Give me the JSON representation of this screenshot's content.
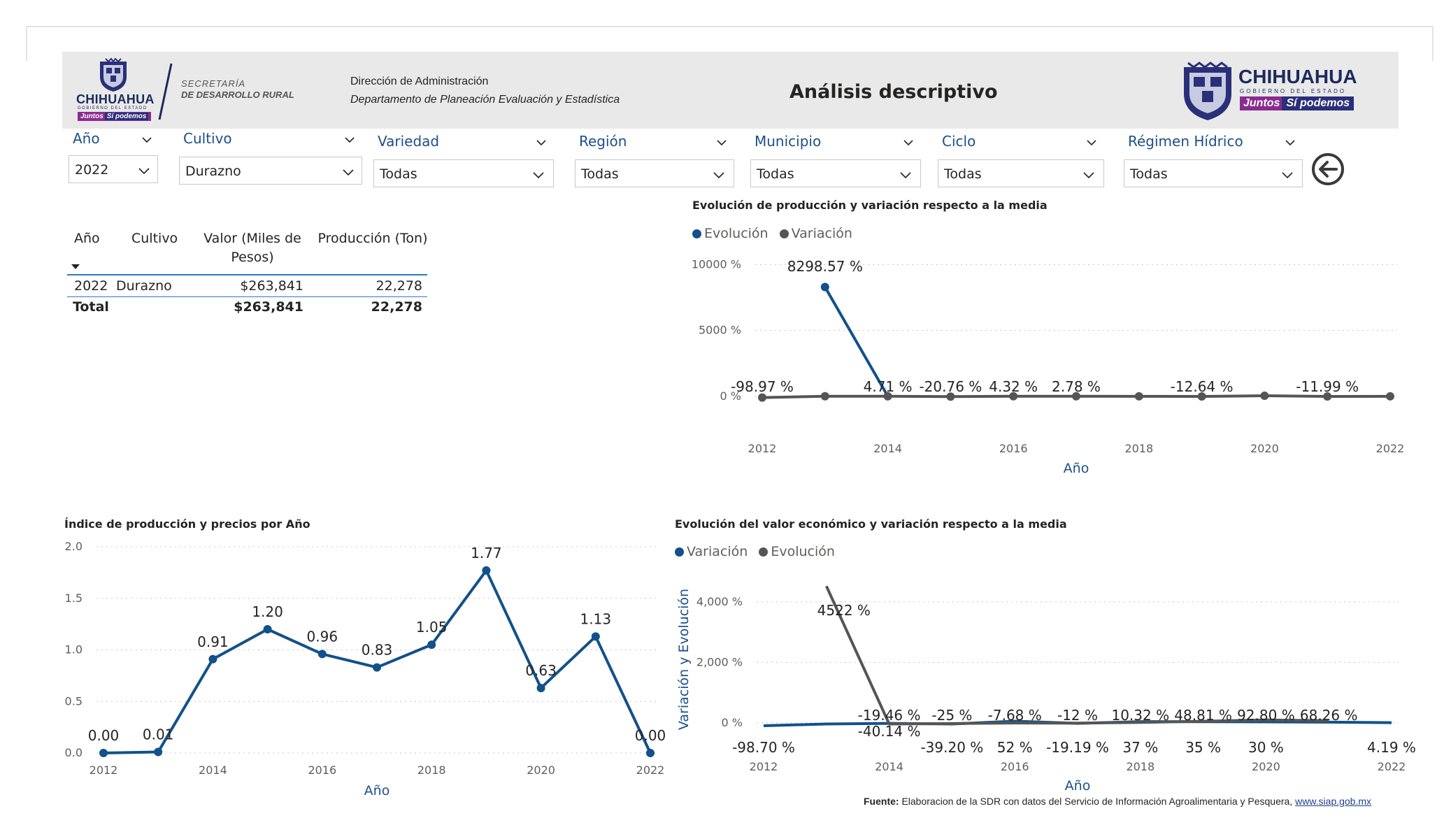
{
  "header": {
    "brand_left": "CHIHUAHUA",
    "brand_left_sub": "GOBIERNO DEL ESTADO",
    "tag_left_a": "Juntos",
    "tag_left_b": "Sí podemos",
    "secretaria_l1": "SECRETARÍA",
    "secretaria_l2": "DE DESARROLLO RURAL",
    "direccion": "Dirección de Administración",
    "departamento": "Departamento de Planeación Evaluación y Estadística",
    "title": "Análisis descriptivo",
    "brand_right": "CHIHUAHUA",
    "brand_right_sub": "GOBIERNO DEL ESTADO",
    "tag_right_a": "Juntos",
    "tag_right_b": "Sí podemos"
  },
  "filters": [
    {
      "label": "Año",
      "value": "2022"
    },
    {
      "label": "Cultivo",
      "value": "Durazno"
    },
    {
      "label": "Variedad",
      "value": "Todas"
    },
    {
      "label": "Región",
      "value": "Todas"
    },
    {
      "label": "Municipio",
      "value": "Todas"
    },
    {
      "label": "Ciclo",
      "value": "Todas"
    },
    {
      "label": "Régimen Hídrico",
      "value": "Todas"
    }
  ],
  "table": {
    "headers": [
      "Año",
      "Cultivo",
      "Valor (Miles de Pesos)",
      "Producción (Ton)"
    ],
    "rows": [
      {
        "anio": "2022",
        "cultivo": "Durazno",
        "valor": "$263,841",
        "produccion": "22,278"
      }
    ],
    "total": {
      "label": "Total",
      "valor": "$263,841",
      "produccion": "22,278"
    }
  },
  "colors": {
    "blue": "#12518a",
    "gray": "#555555",
    "axis_title": "#1d4f8a"
  },
  "chart_data": [
    {
      "type": "line",
      "title": "Evolución de producción y variación respecto a la media",
      "xlabel": "Año",
      "ylabel": "",
      "x": [
        2012,
        2013,
        2014,
        2015,
        2016,
        2017,
        2018,
        2019,
        2020,
        2021,
        2022
      ],
      "x_ticks": [
        "2012",
        "2014",
        "2016",
        "2018",
        "2020",
        "2022"
      ],
      "y_ticks": [
        "0 %",
        "5000 %",
        "10000 %"
      ],
      "ylim": [
        -700,
        10500
      ],
      "legend": "top-left",
      "series": [
        {
          "name": "Evolución",
          "color": "#12518a",
          "values": [
            null,
            8298.57,
            4.71,
            null,
            null,
            null,
            null,
            null,
            null,
            null,
            null
          ]
        },
        {
          "name": "Variación",
          "color": "#555555",
          "values": [
            -98.97,
            4,
            4.71,
            -20.76,
            4.32,
            2.78,
            0,
            -12.64,
            40,
            -11.99,
            0
          ]
        }
      ],
      "data_labels": [
        {
          "x": 2012,
          "text": "-98.97 %"
        },
        {
          "x": 2013,
          "text": "8298.57 %"
        },
        {
          "x": 2014,
          "text": "4.71 %"
        },
        {
          "x": 2015,
          "text": "-20.76 %"
        },
        {
          "x": 2016,
          "text": "4.32 %"
        },
        {
          "x": 2017,
          "text": "2.78 %"
        },
        {
          "x": 2019,
          "text": "-12.64 %"
        },
        {
          "x": 2021,
          "text": "-11.99 %"
        }
      ]
    },
    {
      "type": "line",
      "title": "Índice de producción y precios por Año",
      "xlabel": "Año",
      "ylabel": "",
      "x": [
        2012,
        2013,
        2014,
        2015,
        2016,
        2017,
        2018,
        2019,
        2020,
        2021,
        2022
      ],
      "x_ticks": [
        "2012",
        "2014",
        "2016",
        "2018",
        "2020",
        "2022"
      ],
      "y_ticks": [
        "0.0",
        "0.5",
        "1.0",
        "1.5",
        "2.0"
      ],
      "ylim": [
        0,
        2.0
      ],
      "series": [
        {
          "name": "",
          "color": "#12518a",
          "values": [
            0.0,
            0.01,
            0.91,
            1.2,
            0.96,
            0.83,
            1.05,
            1.77,
            0.63,
            1.13,
            0.0
          ]
        }
      ],
      "data_labels": [
        "0.00",
        "0.01",
        "0.91",
        "1.20",
        "0.96",
        "0.83",
        "1.05",
        "1.77",
        "0.63",
        "1.13",
        "0.00"
      ]
    },
    {
      "type": "line",
      "title": "Evolución del valor económico y variación respecto a la media",
      "xlabel": "Año",
      "ylabel": "Variación y Evolución",
      "x": [
        2012,
        2013,
        2014,
        2015,
        2016,
        2017,
        2018,
        2019,
        2020,
        2021,
        2022
      ],
      "x_ticks": [
        "2012",
        "2014",
        "2016",
        "2018",
        "2020",
        "2022"
      ],
      "y_ticks": [
        "0 %",
        "2,000 %",
        "4,000 %"
      ],
      "ylim": [
        -700,
        4900
      ],
      "legend": "top-left",
      "series": [
        {
          "name": "Variación",
          "color": "#12518a",
          "values": [
            -98.7,
            -40.14,
            -19.46,
            -39.2,
            52,
            -19.19,
            37,
            35,
            30,
            20,
            4.19
          ]
        },
        {
          "name": "Evolución",
          "color": "#555555",
          "values": [
            null,
            4522,
            -40.14,
            -25,
            -7.68,
            -12,
            10.32,
            48.81,
            92.8,
            68.26,
            null
          ]
        }
      ],
      "data_labels": [
        {
          "x": 2012,
          "text": "-98.70 %",
          "pos": "below"
        },
        {
          "x": 2013,
          "text": "4522 %",
          "pos": "right"
        },
        {
          "x": 2014,
          "text": "-19.46 %",
          "pos": "above"
        },
        {
          "x": 2014,
          "text": "-40.14 %",
          "pos": "on"
        },
        {
          "x": 2015,
          "text": "-25 %",
          "pos": "above"
        },
        {
          "x": 2015,
          "text": "-39.20 %",
          "pos": "below"
        },
        {
          "x": 2016,
          "text": "-7.68 %",
          "pos": "above"
        },
        {
          "x": 2016,
          "text": "52 %",
          "pos": "below"
        },
        {
          "x": 2017,
          "text": "-12 %",
          "pos": "above"
        },
        {
          "x": 2017,
          "text": "-19.19 %",
          "pos": "below"
        },
        {
          "x": 2018,
          "text": "10.32 %",
          "pos": "above"
        },
        {
          "x": 2018,
          "text": "37 %",
          "pos": "below"
        },
        {
          "x": 2019,
          "text": "48.81 %",
          "pos": "above"
        },
        {
          "x": 2019,
          "text": "35 %",
          "pos": "below"
        },
        {
          "x": 2020,
          "text": "92.80 %",
          "pos": "above"
        },
        {
          "x": 2020,
          "text": "30 %",
          "pos": "below"
        },
        {
          "x": 2021,
          "text": "68.26 %",
          "pos": "above"
        },
        {
          "x": 2022,
          "text": "4.19 %",
          "pos": "below"
        }
      ]
    }
  ],
  "footer": {
    "label": "Fuente:",
    "text": " Elaboracion de la SDR con datos del Servicio de Información Agroalimentaria y Pesquera, ",
    "link": "www.siap.gob.mx"
  }
}
